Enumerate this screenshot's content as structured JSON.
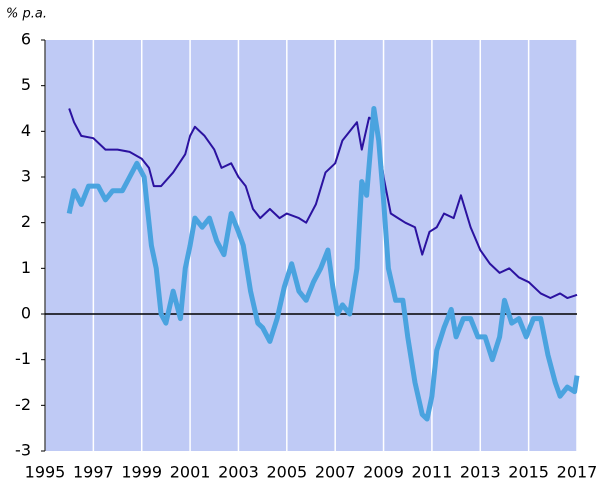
{
  "chart_data": {
    "type": "line",
    "y_label": "% p.a.",
    "xlim": [
      1995,
      2017
    ],
    "ylim": [
      -3,
      6
    ],
    "xticks": [
      1995,
      1997,
      1999,
      2001,
      2003,
      2005,
      2007,
      2009,
      2011,
      2013,
      2015,
      2017
    ],
    "yticks": [
      -3,
      -2,
      -1,
      0,
      1,
      2,
      3,
      4,
      5,
      6
    ],
    "grid": true,
    "background": "#bfcaf5",
    "grid_color": "#ffffff",
    "zero_line_color": "#000000",
    "series": [
      {
        "color": "#2b12a0",
        "width": 2,
        "x": [
          1996.0,
          1996.2,
          1996.5,
          1997.0,
          1997.5,
          1998.0,
          1998.5,
          1999.0,
          1999.3,
          1999.5,
          1999.8,
          2000.3,
          2000.8,
          2001.0,
          2001.2,
          2001.6,
          2002.0,
          2002.3,
          2002.7,
          2003.0,
          2003.3,
          2003.6,
          2003.9,
          2004.3,
          2004.7,
          2005.0,
          2005.5,
          2005.8,
          2006.2,
          2006.6,
          2007.0,
          2007.3,
          2007.6,
          2007.9,
          2008.1,
          2008.4,
          2008.7,
          2009.0,
          2009.3,
          2009.6,
          2009.9,
          2010.3,
          2010.6,
          2010.9,
          2011.2,
          2011.5,
          2011.9,
          2012.2,
          2012.6,
          2013.0,
          2013.4,
          2013.8,
          2014.2,
          2014.6,
          2015.0,
          2015.5,
          2015.9,
          2016.3,
          2016.6,
          2016.9,
          2017.0
        ],
        "values": [
          4.5,
          4.2,
          3.9,
          3.85,
          3.6,
          3.6,
          3.55,
          3.4,
          3.2,
          2.8,
          2.8,
          3.1,
          3.5,
          3.9,
          4.1,
          3.9,
          3.6,
          3.2,
          3.3,
          3.0,
          2.8,
          2.3,
          2.1,
          2.3,
          2.1,
          2.2,
          2.1,
          2.0,
          2.4,
          3.1,
          3.3,
          3.8,
          4.0,
          4.2,
          3.6,
          4.3,
          4.2,
          3.0,
          2.2,
          2.1,
          2.0,
          1.9,
          1.3,
          1.8,
          1.9,
          2.2,
          2.1,
          2.6,
          1.9,
          1.4,
          1.1,
          0.9,
          1.0,
          0.8,
          0.7,
          0.45,
          0.35,
          0.45,
          0.35,
          0.4,
          0.42
        ]
      },
      {
        "color": "#4aa3df",
        "width": 5,
        "x": [
          1996.0,
          1996.2,
          1996.5,
          1996.8,
          1997.2,
          1997.5,
          1997.8,
          1998.2,
          1998.5,
          1998.8,
          1999.1,
          1999.4,
          1999.6,
          1999.8,
          2000.0,
          2000.3,
          2000.6,
          2000.8,
          2001.0,
          2001.2,
          2001.5,
          2001.8,
          2002.1,
          2002.4,
          2002.7,
          2003.0,
          2003.2,
          2003.5,
          2003.8,
          2004.0,
          2004.3,
          2004.6,
          2004.9,
          2005.2,
          2005.5,
          2005.8,
          2006.1,
          2006.4,
          2006.7,
          2006.9,
          2007.1,
          2007.3,
          2007.6,
          2007.9,
          2008.1,
          2008.3,
          2008.6,
          2008.8,
          2009.0,
          2009.2,
          2009.5,
          2009.8,
          2010.0,
          2010.3,
          2010.6,
          2010.8,
          2011.0,
          2011.2,
          2011.5,
          2011.8,
          2012.0,
          2012.3,
          2012.6,
          2012.9,
          2013.2,
          2013.5,
          2013.8,
          2014.0,
          2014.3,
          2014.6,
          2014.9,
          2015.2,
          2015.5,
          2015.8,
          2016.1,
          2016.3,
          2016.6,
          2016.9,
          2017.0
        ],
        "values": [
          2.2,
          2.7,
          2.4,
          2.8,
          2.8,
          2.5,
          2.7,
          2.7,
          3.0,
          3.3,
          3.0,
          1.5,
          1.0,
          0.0,
          -0.2,
          0.5,
          -0.1,
          1.0,
          1.5,
          2.1,
          1.9,
          2.1,
          1.6,
          1.3,
          2.2,
          1.8,
          1.5,
          0.5,
          -0.2,
          -0.3,
          -0.6,
          -0.1,
          0.6,
          1.1,
          0.5,
          0.3,
          0.7,
          1.0,
          1.4,
          0.6,
          0.0,
          0.2,
          0.0,
          1.0,
          2.9,
          2.6,
          4.5,
          3.8,
          2.5,
          1.0,
          0.3,
          0.3,
          -0.5,
          -1.5,
          -2.2,
          -2.3,
          -1.8,
          -0.8,
          -0.3,
          0.1,
          -0.5,
          -0.1,
          -0.1,
          -0.5,
          -0.5,
          -1.0,
          -0.5,
          0.3,
          -0.2,
          -0.1,
          -0.5,
          -0.1,
          -0.1,
          -0.9,
          -1.5,
          -1.8,
          -1.6,
          -1.7,
          -1.35
        ]
      }
    ]
  }
}
